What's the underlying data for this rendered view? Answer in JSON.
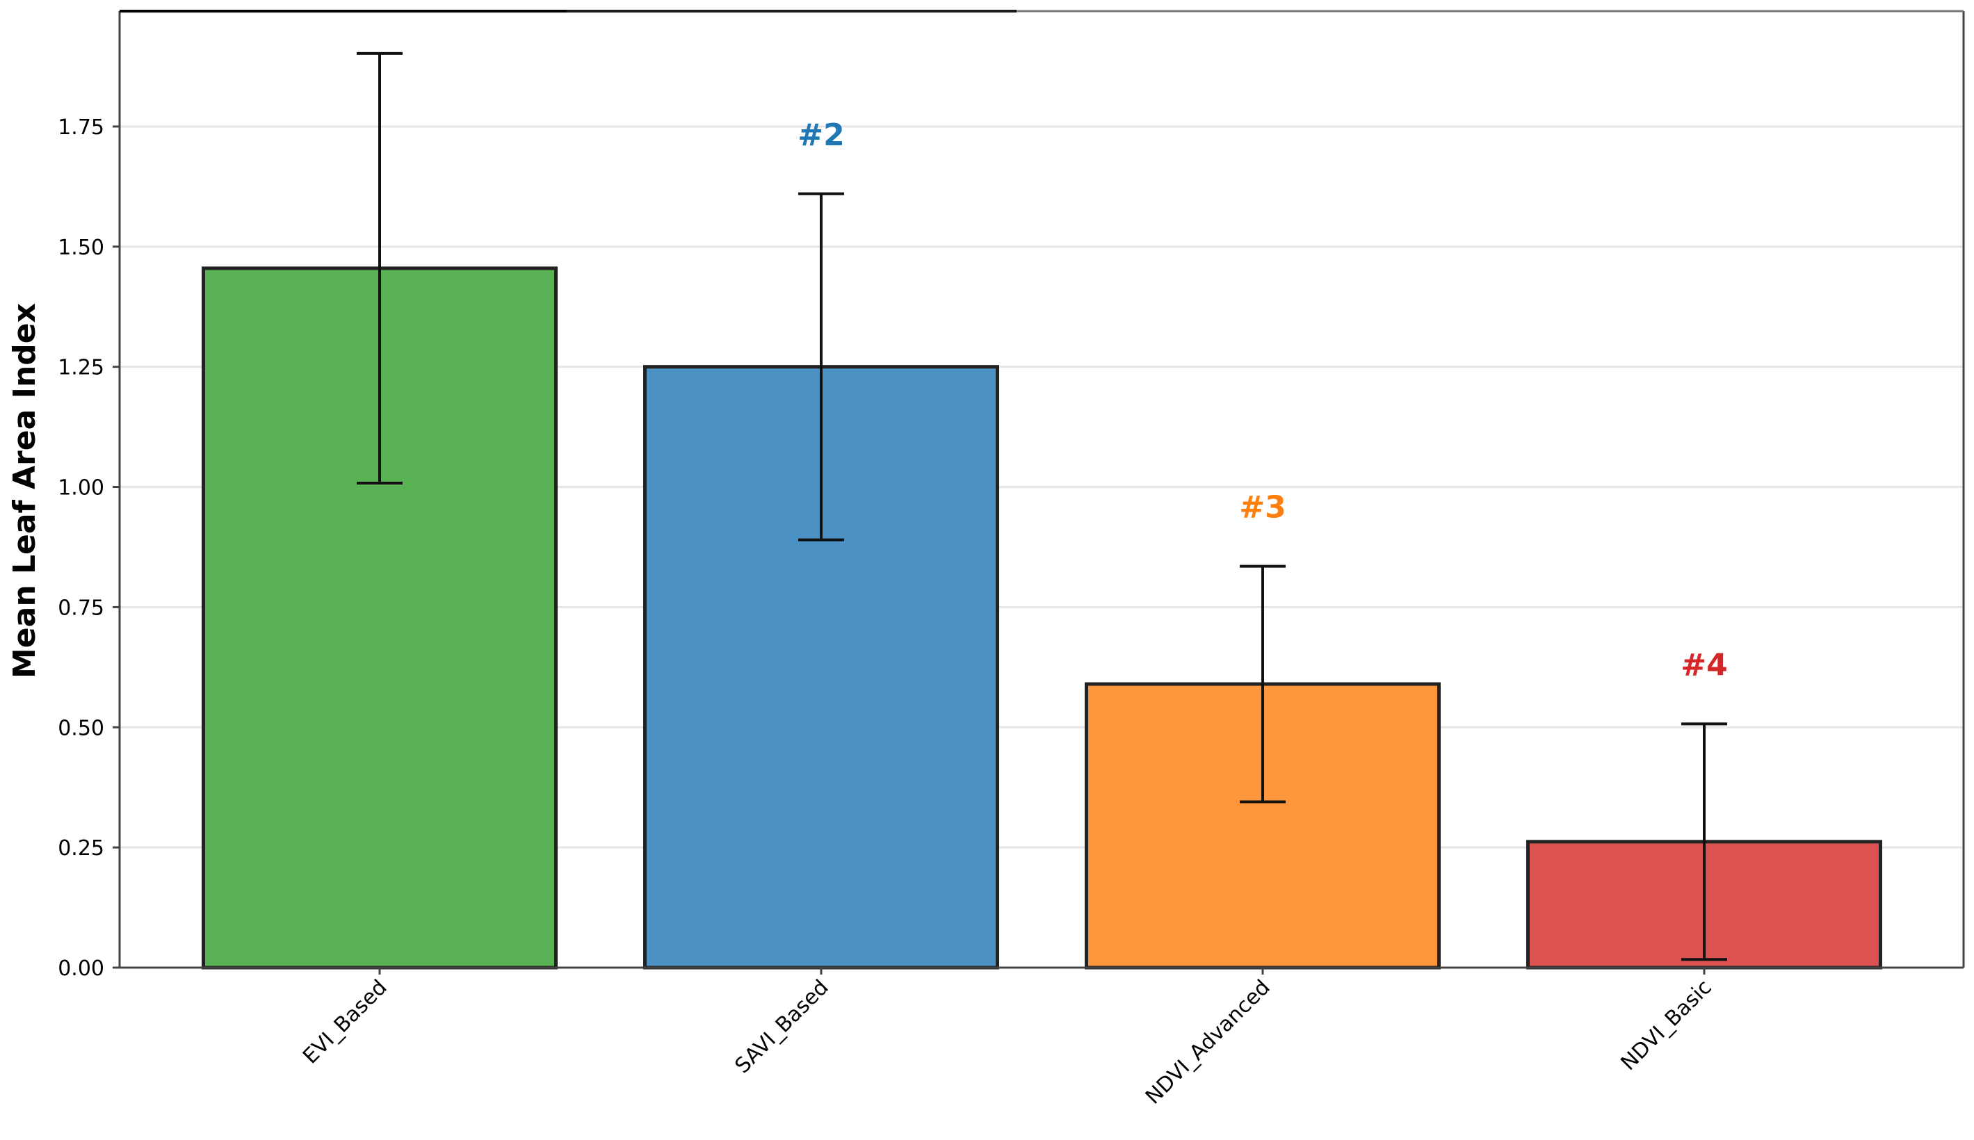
{
  "chart_data": {
    "type": "bar",
    "title": "",
    "xlabel": "",
    "ylabel": "Mean Leaf Area Index",
    "categories": [
      "EVI_Based",
      "SAVI_Based",
      "NDVI_Advanced",
      "NDVI_Basic"
    ],
    "values": [
      1.455,
      1.25,
      0.59,
      0.262
    ],
    "error": [
      0.447,
      0.36,
      0.245,
      0.245
    ],
    "colors": [
      "#59b354",
      "#4b91c3",
      "#fe963d",
      "#dc5250"
    ],
    "rank_labels": [
      "",
      "#2",
      "#3",
      "#4"
    ],
    "rank_colors": [
      "#2ca02c",
      "#1f77b4",
      "#ff7f0e",
      "#d62728"
    ],
    "ylim": [
      0,
      1.99
    ],
    "yticks": [
      0,
      0.25,
      0.5,
      0.75,
      1.0,
      1.25,
      1.5,
      1.75
    ],
    "ytick_labels": [
      "0.00",
      "0.25",
      "0.50",
      "0.75",
      "1.00",
      "1.25",
      "1.50",
      "1.75"
    ],
    "grid": "y",
    "legend": "none"
  }
}
